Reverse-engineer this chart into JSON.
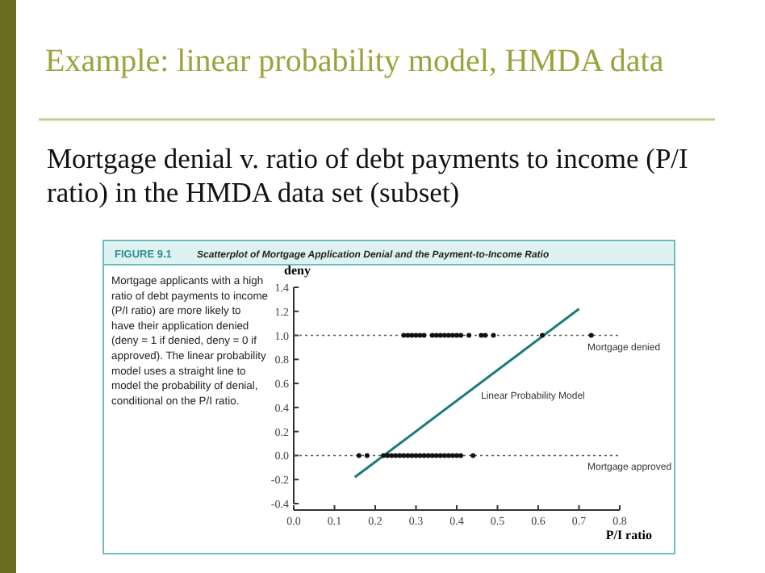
{
  "chart_data": {
    "type": "scatter",
    "title": "Example: linear probability model, HMDA data",
    "subtitle": "Mortgage denial v. ratio of debt payments to income (P/I ratio) in the HMDA data set (subset)",
    "annotations": [
      "FIGURE 9.1",
      "Scatterplot of Mortgage Application Denial and the Payment-to-Income Ratio",
      "Mortgage applicants with a high ratio of debt payments to income (P/I ratio) are more likely to have their application denied (deny = 1 if denied, deny = 0 if approved). The linear probability model uses a straight line to model the probability of denial, conditional on the P/I ratio.",
      "Linear Probability Model"
    ],
    "xlabel": "P/I ratio",
    "ylabel": "deny",
    "xlim": [
      0,
      0.8
    ],
    "xticks": [
      {
        "value": 0,
        "label": "0.0"
      },
      0.1,
      0.2,
      0.3,
      0.4,
      0.5,
      0.6,
      0.7,
      0.8
    ],
    "ylim": [
      -0.4,
      1.4
    ],
    "yticks": [
      -0.4,
      -0.2,
      {
        "value": 0,
        "label": "0.0"
      },
      0.2,
      0.4,
      0.6,
      0.8,
      {
        "value": 1,
        "label": "1.0"
      },
      1.2,
      1.4
    ],
    "marker": "circle",
    "ref_lines": [
      {
        "axis": "y",
        "value": 1,
        "label": "Mortgage denied",
        "color": "#555555",
        "line_style": "dotted"
      },
      {
        "axis": "y",
        "value": 0,
        "label": "Mortgage approved",
        "color": "#555555",
        "line_style": "dotted"
      }
    ],
    "series": [
      {
        "color": "#111111",
        "x": [
          0.27,
          0.28,
          0.29,
          0.3,
          0.31,
          0.32,
          0.34,
          0.35,
          0.36,
          0.37,
          0.38,
          0.39,
          0.4,
          0.41,
          0.43,
          0.46,
          0.47,
          0.49,
          0.61,
          0.73
        ],
        "values": [
          1,
          1,
          1,
          1,
          1,
          1,
          1,
          1,
          1,
          1,
          1,
          1,
          1,
          1,
          1,
          1,
          1,
          1,
          1,
          1
        ]
      },
      {
        "color": "#111111",
        "x": [
          0.16,
          0.18,
          0.22,
          0.23,
          0.24,
          0.25,
          0.26,
          0.27,
          0.28,
          0.29,
          0.3,
          0.31,
          0.32,
          0.33,
          0.34,
          0.35,
          0.36,
          0.37,
          0.38,
          0.39,
          0.4,
          0.41,
          0.44
        ],
        "values": [
          0,
          0,
          0,
          0,
          0,
          0,
          0,
          0,
          0,
          0,
          0,
          0,
          0,
          0,
          0,
          0,
          0,
          0,
          0,
          0,
          0,
          0,
          0
        ]
      },
      {
        "type": "line",
        "marker": "none",
        "color": "#1f7a7a",
        "x": [
          0.15,
          0.7
        ],
        "values": [
          -0.18,
          1.22
        ]
      }
    ]
  }
}
